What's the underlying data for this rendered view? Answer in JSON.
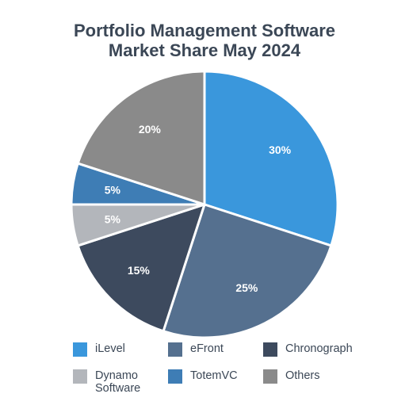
{
  "chart_data": {
    "type": "pie",
    "title_lines": [
      "Portfolio Management Software",
      "Market Share May 2024"
    ],
    "slices": [
      {
        "name": "iLevel",
        "value": 30,
        "label": "30%",
        "color": "#3a97dc"
      },
      {
        "name": "eFront",
        "value": 25,
        "label": "25%",
        "color": "#55708f"
      },
      {
        "name": "Chronograph",
        "value": 15,
        "label": "15%",
        "color": "#3d4a5e"
      },
      {
        "name": "Dynamo\nSoftware",
        "value": 5,
        "label": "5%",
        "color": "#b3b6bb"
      },
      {
        "name": "TotemVC",
        "value": 5,
        "label": "5%",
        "color": "#3e7db5"
      },
      {
        "name": "Others",
        "value": 20,
        "label": "20%",
        "color": "#8a8a8a"
      }
    ],
    "legend_placement": "bottom"
  }
}
